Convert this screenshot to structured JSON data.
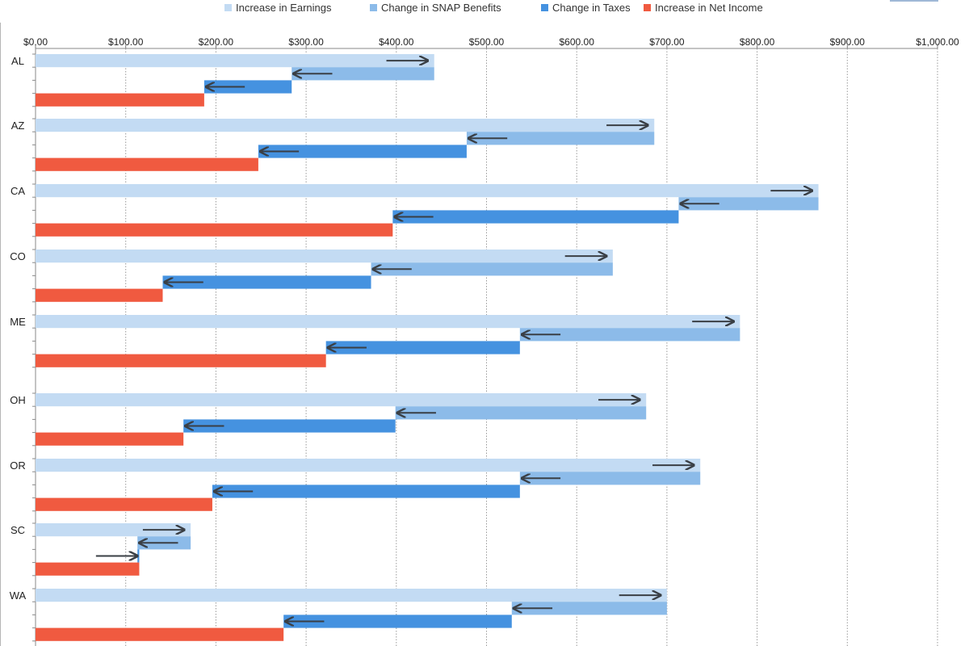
{
  "chart_data": {
    "type": "bar",
    "orientation": "horizontal-waterfall",
    "categories": [
      "AL",
      "AZ",
      "CA",
      "CO",
      "ME",
      "OH",
      "OR",
      "SC",
      "WA"
    ],
    "series": [
      {
        "name": "Increase in Earnings",
        "color": "#c3dbf3",
        "values": [
          442,
          686,
          868,
          640,
          781,
          677,
          737,
          172,
          700
        ]
      },
      {
        "name": "Change in SNAP Benefits",
        "color": "#8cbbe9",
        "start": [
          442,
          686,
          868,
          640,
          781,
          677,
          737,
          172,
          700
        ],
        "end": [
          284,
          478,
          713,
          372,
          537,
          399,
          537,
          113,
          528
        ]
      },
      {
        "name": "Change in Taxes",
        "color": "#4592e0",
        "start": [
          284,
          478,
          713,
          372,
          537,
          399,
          537,
          113,
          528
        ],
        "end": [
          187,
          247,
          396,
          141,
          322,
          164,
          196,
          115,
          275
        ]
      },
      {
        "name": "Increase in Net Income",
        "color": "#f05a40",
        "values": [
          187,
          247,
          396,
          141,
          322,
          164,
          196,
          115,
          275
        ]
      }
    ],
    "xlim": [
      0,
      1000
    ],
    "xticks": [
      "$0.00",
      "$100.00",
      "$200.00",
      "$300.00",
      "$400.00",
      "$500.00",
      "$600.00",
      "$700.00",
      "$800.00",
      "$900.00",
      "$1,000.00"
    ],
    "grid": true,
    "legend_position": "top",
    "title": "",
    "xlabel": "",
    "ylabel": ""
  }
}
